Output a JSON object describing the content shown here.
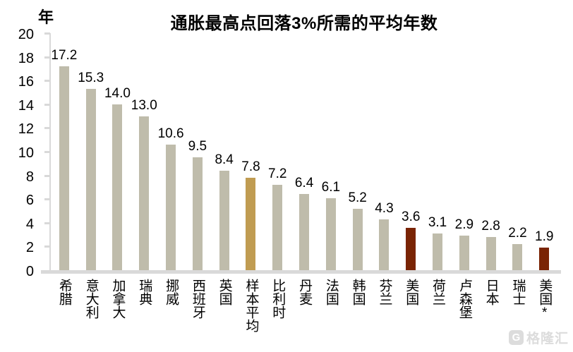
{
  "chart_data": {
    "type": "bar",
    "title": "通胀最高点回落3%所需的平均年数",
    "y_axis_unit": "年",
    "xlabel": "",
    "ylabel": "年",
    "ylim": [
      0,
      20
    ],
    "y_tick_step": 2,
    "y_tick_labels": [
      "0",
      "2",
      "4",
      "6",
      "8",
      "10",
      "12",
      "14",
      "16",
      "18",
      "20"
    ],
    "grid": false,
    "legend": "none",
    "categories": [
      "希腊",
      "意大利",
      "加拿大",
      "瑞典",
      "挪威",
      "西班牙",
      "英国",
      "样本平均",
      "比利时",
      "丹麦",
      "法国",
      "韩国",
      "芬兰",
      "美国",
      "荷兰",
      "卢森堡",
      "日本",
      "瑞士",
      "美国*"
    ],
    "values": [
      17.2,
      15.3,
      14.0,
      13.0,
      10.6,
      9.5,
      8.4,
      7.8,
      7.2,
      6.4,
      6.1,
      5.2,
      4.3,
      3.6,
      3.1,
      2.9,
      2.8,
      2.2,
      1.9
    ],
    "value_labels": [
      "17.2",
      "15.3",
      "14.0",
      "13.0",
      "10.6",
      "9.5",
      "8.4",
      "7.8",
      "7.2",
      "6.4",
      "6.1",
      "5.2",
      "4.3",
      "3.6",
      "3.1",
      "2.9",
      "2.8",
      "2.2",
      "1.9"
    ],
    "bar_color_keys": [
      "default",
      "default",
      "default",
      "default",
      "default",
      "default",
      "default",
      "average",
      "default",
      "default",
      "default",
      "default",
      "default",
      "highlight",
      "default",
      "default",
      "default",
      "default",
      "highlight"
    ],
    "colors": {
      "default": "#bfbcab",
      "average": "#c09c52",
      "highlight": "#7a2404",
      "axis": "#d9d9d9",
      "text": "#000000"
    }
  },
  "watermark": {
    "logo_letter": "G",
    "text": "格隆汇",
    "color": "#dcdcdc"
  }
}
